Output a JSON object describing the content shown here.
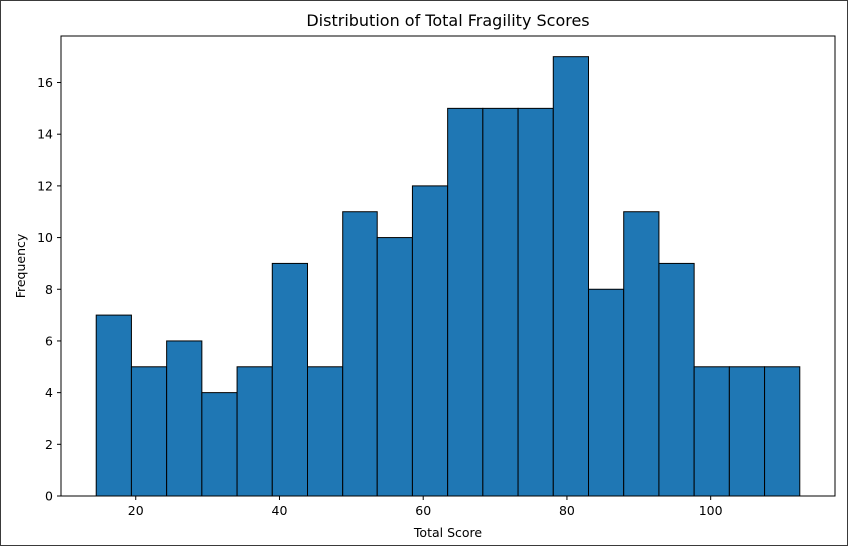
{
  "chart_data": {
    "type": "bar",
    "title": "Distribution of Total Fragility Scores",
    "xlabel": "Total Score",
    "ylabel": "Frequency",
    "bar_color": "#1f77b4",
    "edge_color": "#000000",
    "bins": [
      [
        14.5,
        19.4
      ],
      [
        19.4,
        24.3
      ],
      [
        24.3,
        29.2
      ],
      [
        29.2,
        34.1
      ],
      [
        34.1,
        39.0
      ],
      [
        39.0,
        43.9
      ],
      [
        43.9,
        48.8
      ],
      [
        48.8,
        53.6
      ],
      [
        53.6,
        58.5
      ],
      [
        58.5,
        63.4
      ],
      [
        63.4,
        68.3
      ],
      [
        68.3,
        73.2
      ],
      [
        73.2,
        78.1
      ],
      [
        78.1,
        83.0
      ],
      [
        83.0,
        87.9
      ],
      [
        87.9,
        92.8
      ],
      [
        92.8,
        97.7
      ],
      [
        97.7,
        102.6
      ],
      [
        102.6,
        107.5
      ],
      [
        107.5,
        112.4
      ]
    ],
    "values": [
      7,
      5,
      6,
      4,
      5,
      9,
      5,
      11,
      10,
      12,
      15,
      15,
      15,
      17,
      8,
      11,
      9,
      5,
      5,
      5
    ],
    "xlim": [
      9.6,
      117.3
    ],
    "ylim": [
      0,
      17.8
    ],
    "xticks": [
      20,
      40,
      60,
      80,
      100
    ],
    "yticks": [
      0,
      2,
      4,
      6,
      8,
      10,
      12,
      14,
      16
    ],
    "grid": false,
    "legend": "none"
  }
}
